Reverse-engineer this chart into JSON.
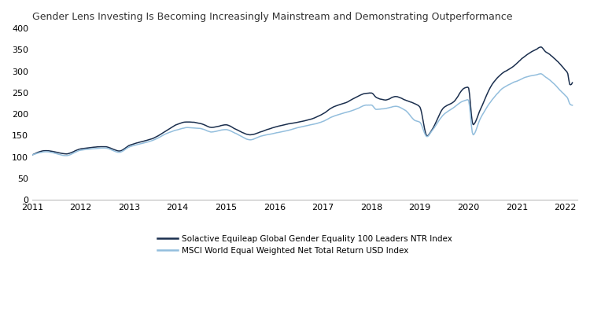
{
  "title": "Gender Lens Investing Is Becoming Increasingly Mainstream and Demonstrating Outperformance",
  "legend1": "Solactive Equileap Global Gender Equality 100 Leaders NTR Index",
  "legend2": "MSCI World Equal Weighted Net Total Return USD Index",
  "color1": "#1b2f4e",
  "color2": "#93bedd",
  "ylim": [
    0,
    400
  ],
  "yticks": [
    0,
    50,
    100,
    150,
    200,
    250,
    300,
    350,
    400
  ],
  "xlim_start": 2011.0,
  "xlim_end": 2022.25,
  "background_color": "#ffffff",
  "figsize": [
    7.5,
    4.07
  ],
  "dpi": 100,
  "linewidth1": 1.1,
  "linewidth2": 1.1,
  "title_fontsize": 9,
  "tick_fontsize": 8,
  "legend_fontsize": 7.5
}
